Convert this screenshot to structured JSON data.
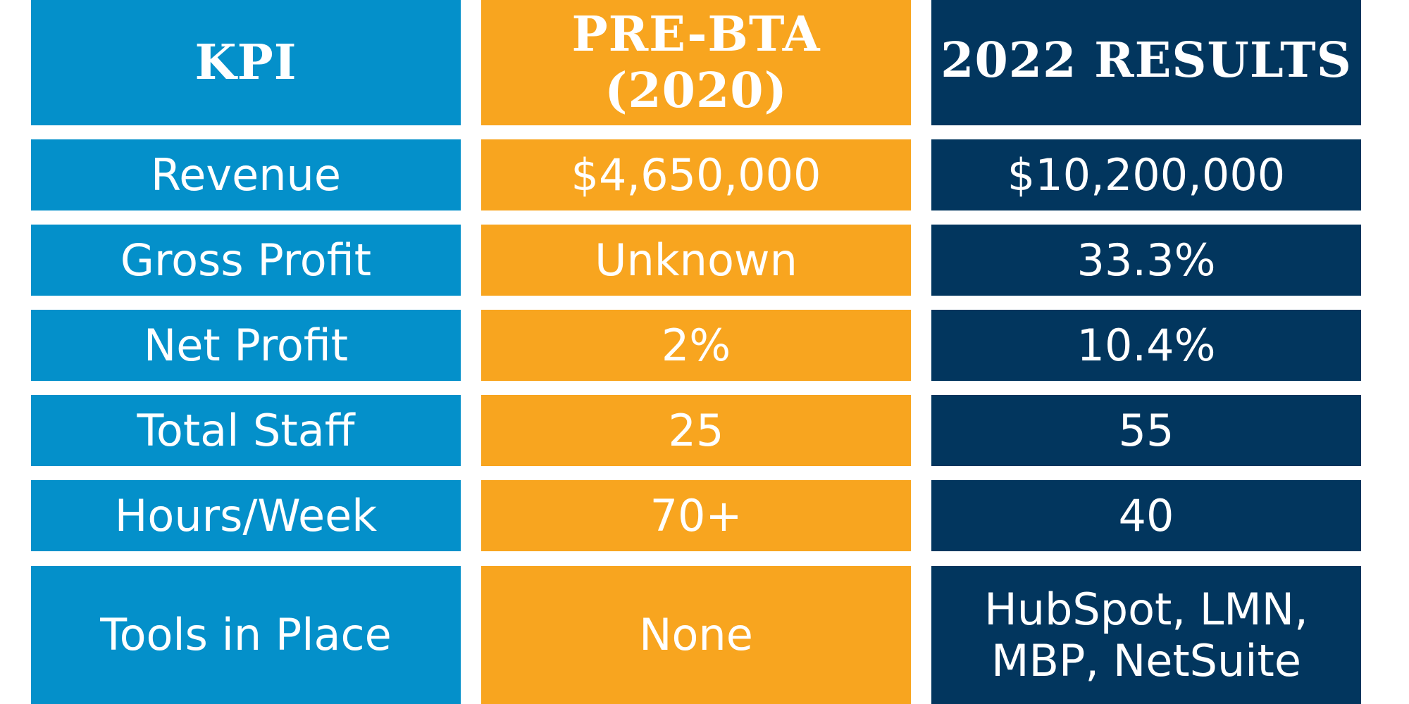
{
  "headers": {
    "kpi": "KPI",
    "pre": "PRE-BTA (2020)",
    "results": "2022 RESULTS"
  },
  "rows": [
    {
      "kpi": "Revenue",
      "pre": "$4,650,000",
      "results": "$10,200,000"
    },
    {
      "kpi": "Gross Profit",
      "pre": "Unknown",
      "results": "33.3%"
    },
    {
      "kpi": "Net Profit",
      "pre": "2%",
      "results": "10.4%"
    },
    {
      "kpi": "Total Staff",
      "pre": "25",
      "results": "55"
    },
    {
      "kpi": "Hours/Week",
      "pre": "70+",
      "results": "40"
    },
    {
      "kpi": "Tools in Place",
      "pre": "None",
      "results": "HubSpot, LMN,\nMBP, NetSuite"
    }
  ],
  "colors": {
    "kpi_column": "#0490ca",
    "pre_column": "#f8a51f",
    "results_column": "#02365e",
    "text": "#ffffff"
  }
}
